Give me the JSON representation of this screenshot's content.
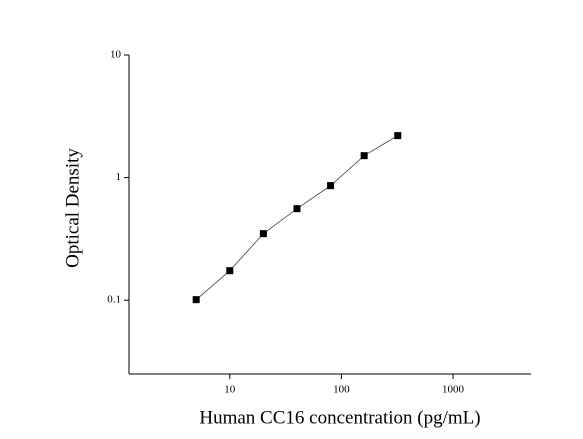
{
  "chart_data": {
    "type": "scatter",
    "x_label": "Human CC16 concentration (pg/mL)",
    "y_label": "Optical Density",
    "x": [
      5,
      10,
      20,
      40,
      80,
      160,
      320
    ],
    "series": [
      {
        "color": "#000000",
        "values": [
          0.101,
          0.174,
          0.349,
          0.558,
          0.86,
          1.51,
          2.2
        ]
      }
    ],
    "xlim": [
      1.25,
      5000
    ],
    "ylim": [
      0.025,
      10
    ],
    "xticks": [
      10,
      100,
      1000
    ],
    "yticks": [
      0.1,
      1,
      10
    ],
    "xscale": "log",
    "yscale": "log",
    "connect": true,
    "grid": false
  }
}
